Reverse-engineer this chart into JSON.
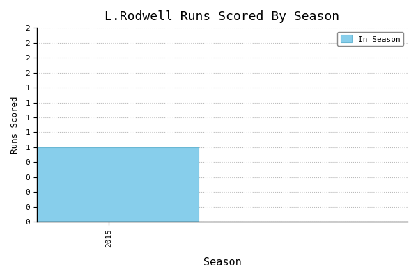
{
  "title": "L.Rodwell Runs Scored By Season",
  "xlabel": "Season",
  "ylabel": "Runs Scored",
  "seasons": [
    2015
  ],
  "values": [
    1
  ],
  "bar_color": "#87CEEB",
  "bar_edgecolor": "#6ab8d4",
  "ylim": [
    0,
    2.6
  ],
  "ytick_step": 0.2,
  "xlim": [
    2014.4,
    2017.5
  ],
  "bar_width": 1.5,
  "background_color": "#ffffff",
  "grid_color": "#bbbbbb",
  "legend_label": "In Season",
  "legend_bar_color": "#87CEEB",
  "legend_bar_edgecolor": "#6ab8d4"
}
